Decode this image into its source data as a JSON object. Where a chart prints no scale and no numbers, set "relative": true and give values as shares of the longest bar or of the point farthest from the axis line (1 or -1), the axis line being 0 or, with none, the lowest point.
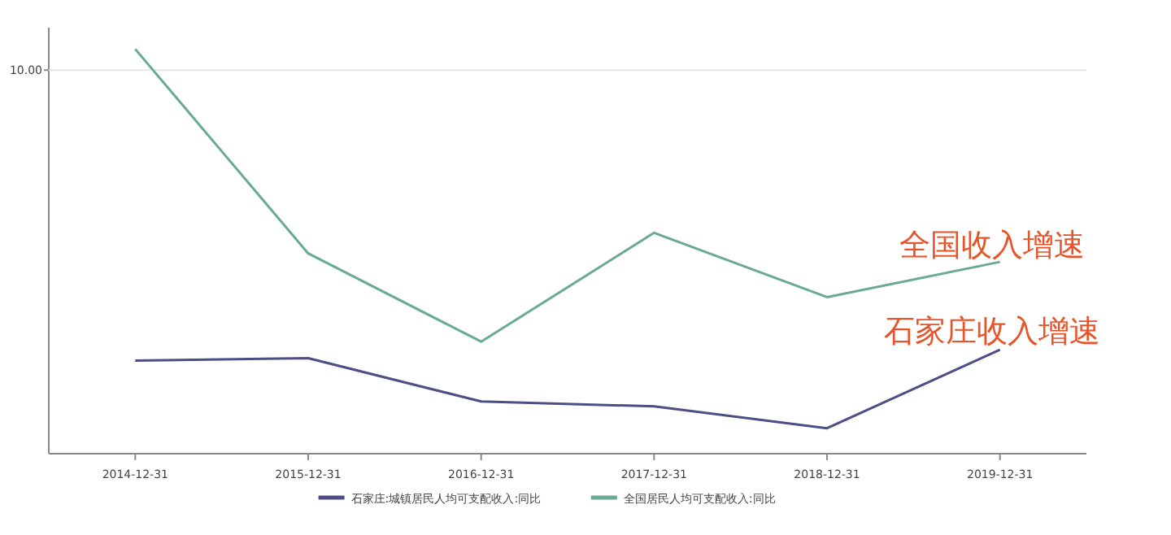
{
  "chart_data": {
    "type": "line",
    "relative": true,
    "categories": [
      "2014-12-31",
      "2015-12-31",
      "2016-12-31",
      "2017-12-31",
      "2018-12-31",
      "2019-12-31"
    ],
    "series": [
      {
        "name": "石家庄:城镇居民人均可支配收入:同比",
        "color": "#4b4f86",
        "values": [
          0.23,
          0.236,
          0.129,
          0.117,
          0.063,
          0.257
        ]
      },
      {
        "name": "全国居民人均可支配收入:同比",
        "color": "#6aaa90",
        "values": [
          1.0,
          0.495,
          0.277,
          0.546,
          0.387,
          0.474
        ]
      }
    ],
    "ref_lines": [
      {
        "axis": "y",
        "value": 0.948,
        "color": "#e6e6e6"
      }
    ],
    "annotations": [
      "全国收入增速",
      "石家庄收入增速",
      "10.00"
    ],
    "legend": "bottom",
    "line_style": "solid"
  }
}
